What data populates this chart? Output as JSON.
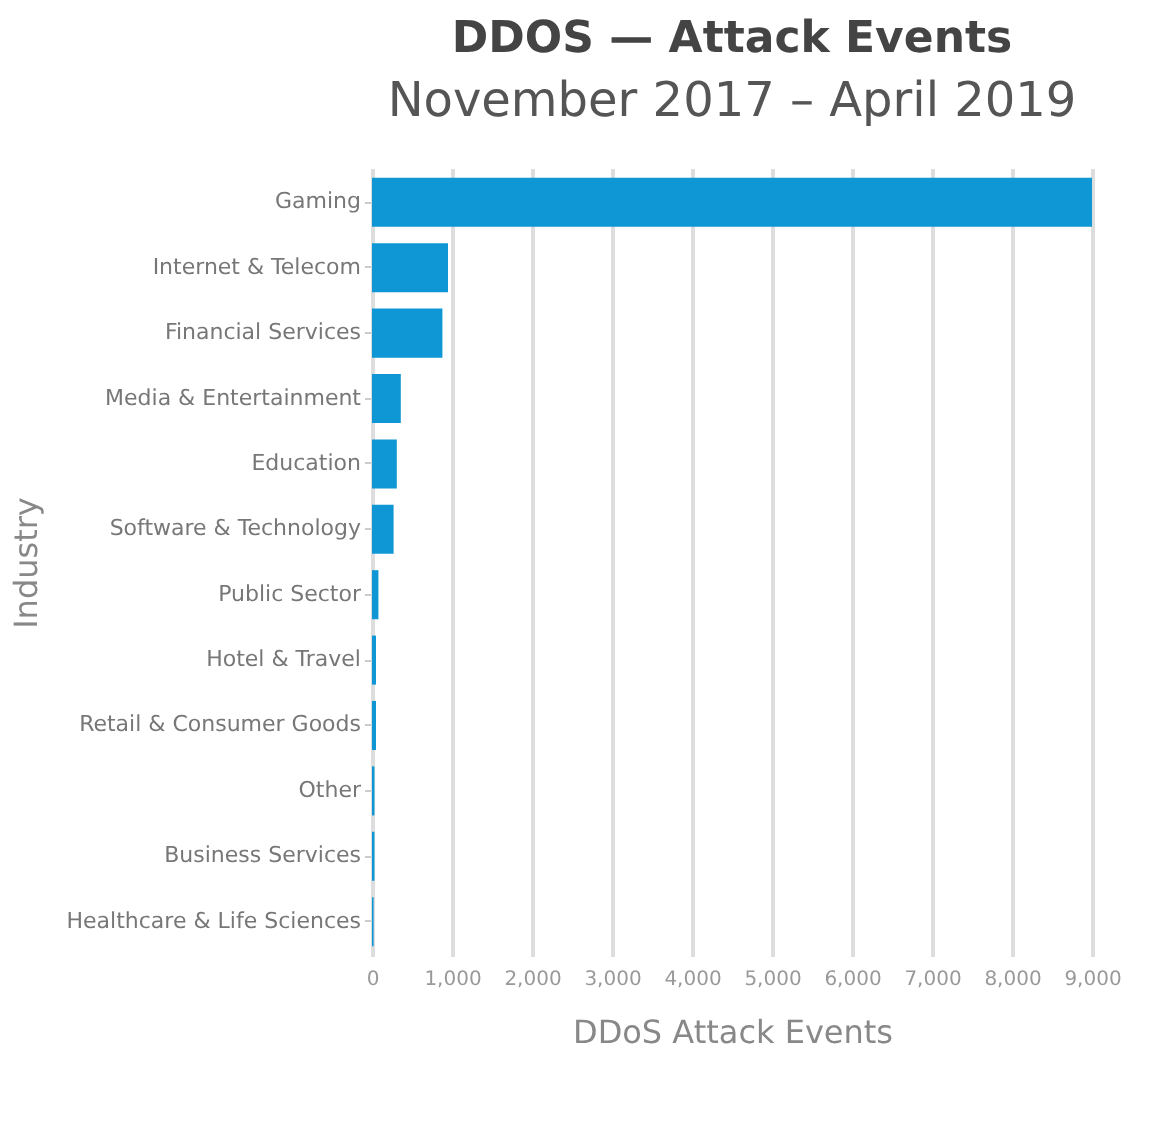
{
  "chart_data": {
    "type": "bar",
    "orientation": "horizontal",
    "title": "DDOS — Attack Events",
    "subtitle": "November 2017 – April 2019",
    "xlabel": "DDoS Attack Events",
    "ylabel": "Industry",
    "categories": [
      "Gaming",
      "Internet & Telecom",
      "Financial Services",
      "Media & Entertainment",
      "Education",
      "Software & Technology",
      "Public Sector",
      "Hotel & Travel",
      "Retail & Consumer Goods",
      "Other",
      "Business Services",
      "Healthcare & Life Sciences"
    ],
    "values": [
      9000,
      950,
      880,
      360,
      310,
      270,
      80,
      50,
      50,
      30,
      30,
      20
    ],
    "color": "#0e97d4",
    "xlim": [
      0,
      9000
    ],
    "xticks": [
      {
        "value": 0,
        "label": "0"
      },
      {
        "value": 1000,
        "label": "1,000"
      },
      {
        "value": 2000,
        "label": "2,000"
      },
      {
        "value": 3000,
        "label": "3,000"
      },
      {
        "value": 4000,
        "label": "4,000"
      },
      {
        "value": 5000,
        "label": "5,000"
      },
      {
        "value": 6000,
        "label": "6,000"
      },
      {
        "value": 7000,
        "label": "7,000"
      },
      {
        "value": 8000,
        "label": "8,000"
      },
      {
        "value": 9000,
        "label": "9,000"
      }
    ],
    "grid": "x"
  }
}
